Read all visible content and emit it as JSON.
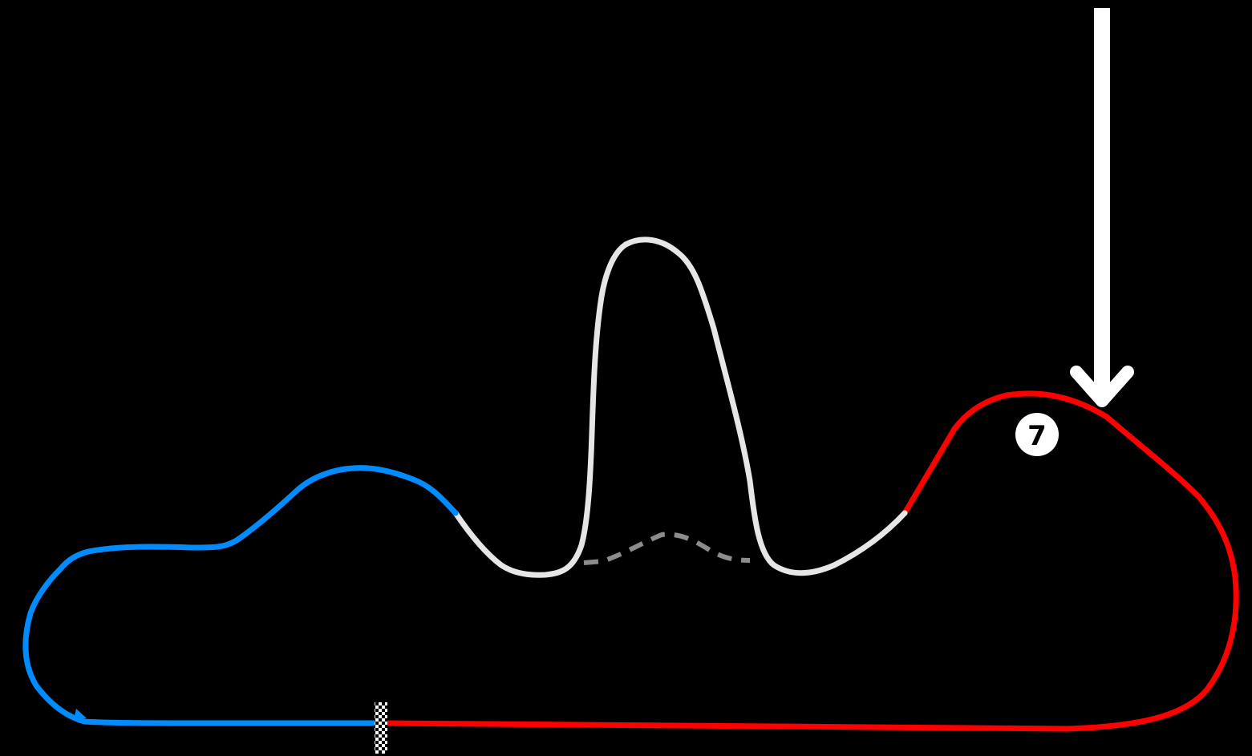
{
  "map": {
    "background_color": "#000000",
    "sectors": [
      {
        "id": "sector-1",
        "color": "#ff0000"
      },
      {
        "id": "sector-2",
        "color": "#008cff"
      },
      {
        "id": "sector-3",
        "color": "#e6e6e6"
      }
    ],
    "alternate_route": {
      "color": "#8c8c8c",
      "style": "dashed"
    },
    "start_finish_line": {
      "pattern": "checkered"
    },
    "highlighted_corner": {
      "label": "7",
      "marker_color": "#ffffff",
      "text_color": "#000000"
    },
    "pointer_arrow": {
      "color": "#ffffff",
      "direction": "down"
    }
  }
}
